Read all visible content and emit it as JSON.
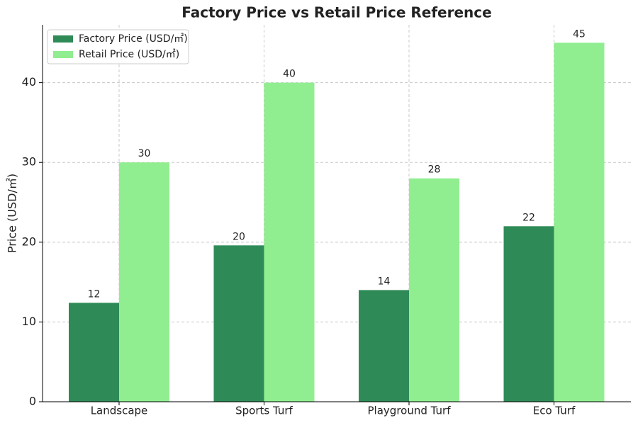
{
  "chart_data": {
    "type": "bar",
    "title": "Factory Price vs Retail Price Reference",
    "ylabel": "Price (USD/㎡)",
    "categories": [
      "Landscape",
      "Sports Turf",
      "Playground Turf",
      "Eco Turf"
    ],
    "series": [
      {
        "name": "Factory Price (USD/㎡)",
        "color": "#2e8b57",
        "values": [
          12.4,
          19.6,
          14,
          22
        ],
        "value_labels": [
          "12",
          "20",
          "14",
          "22"
        ]
      },
      {
        "name": "Retail Price (USD/㎡)",
        "color": "#90ee90",
        "values": [
          30,
          40,
          28,
          45
        ],
        "value_labels": [
          "30",
          "40",
          "28",
          "45"
        ]
      }
    ],
    "ylim": [
      0,
      47.25
    ],
    "yticks": [
      0,
      10,
      20,
      30,
      40
    ],
    "grid": true,
    "legend": "upper left"
  }
}
